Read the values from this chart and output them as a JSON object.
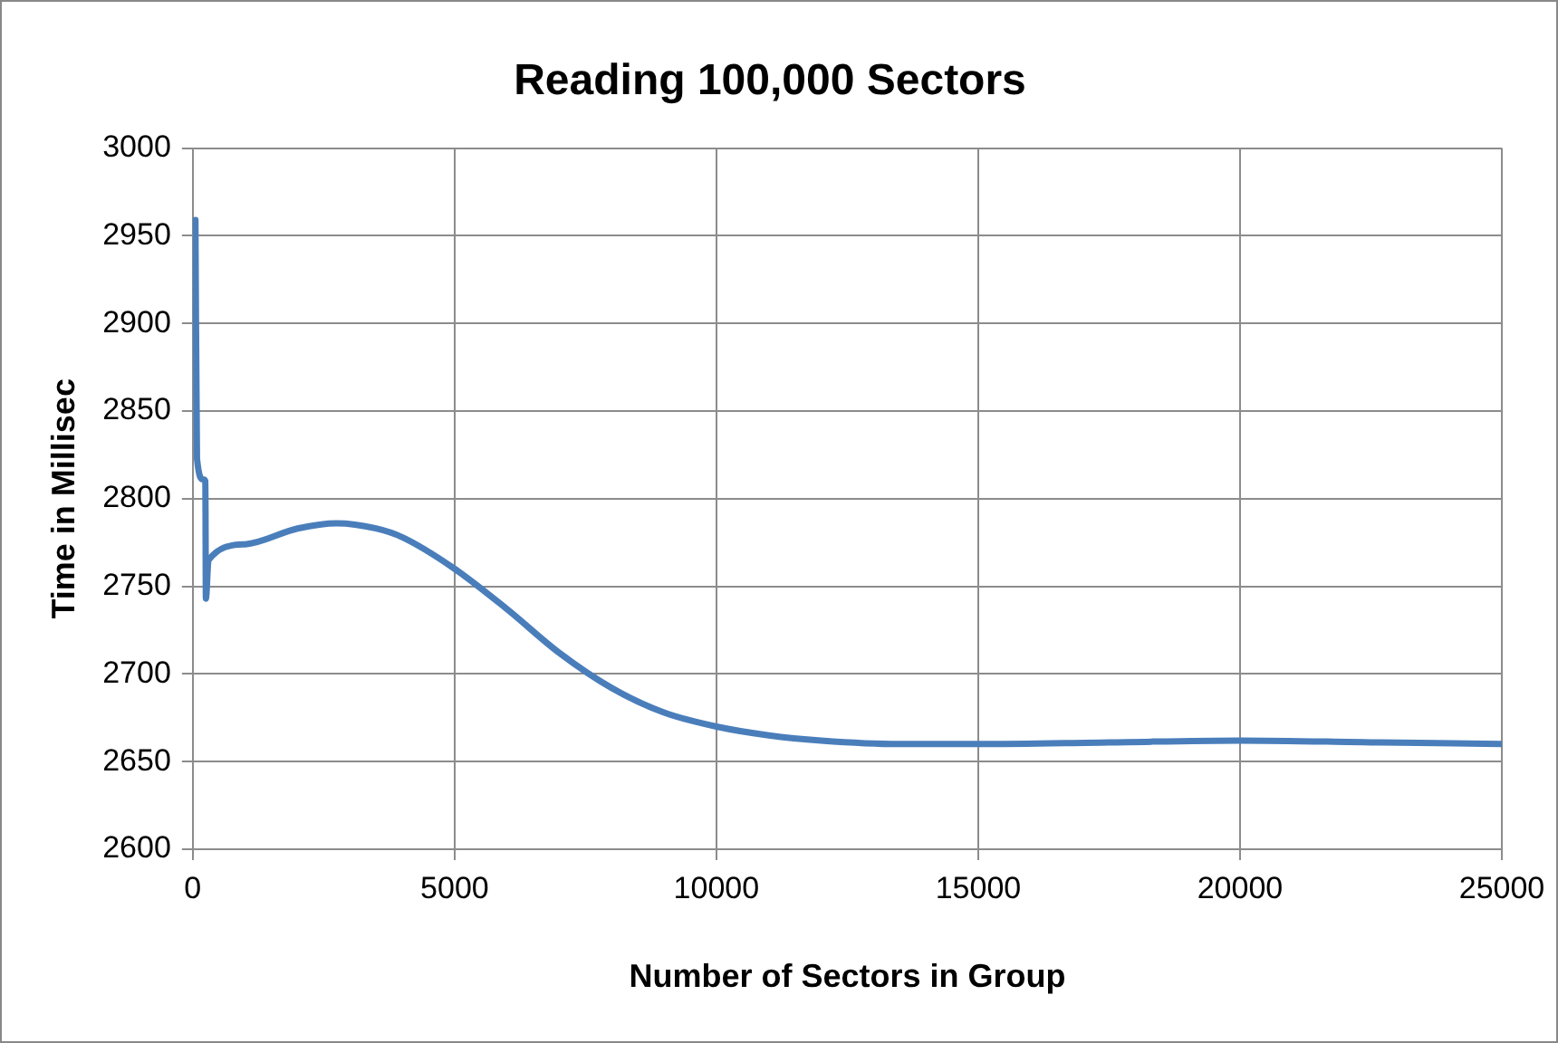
{
  "chart_data": {
    "type": "line",
    "title": "Reading 100,000 Sectors",
    "xlabel": "Number of Sectors in Group",
    "ylabel": "Time in Millisec",
    "x": [
      50,
      80,
      200,
      240,
      250,
      300,
      1000,
      2000,
      2750,
      3500,
      4000,
      5000,
      6000,
      7000,
      8000,
      9000,
      10000,
      11000,
      12000,
      13500,
      15000,
      17500,
      20000,
      22500,
      25000
    ],
    "series": [
      {
        "color": "#4a7ebb",
        "values": [
          2959,
          2823,
          2811,
          2810,
          2743,
          2765,
          2774,
          2783,
          2786,
          2783,
          2778,
          2760,
          2737,
          2712,
          2692,
          2678,
          2670,
          2665,
          2662,
          2660,
          2660,
          2661,
          2662,
          2661,
          2660
        ]
      }
    ],
    "xlim": [
      0,
      25000
    ],
    "xticks": [
      0,
      5000,
      10000,
      15000,
      20000,
      25000
    ],
    "ylim": [
      2600,
      3000
    ],
    "yticks": [
      2600,
      2650,
      2700,
      2750,
      2800,
      2850,
      2900,
      2950,
      3000
    ],
    "grid": true,
    "legend": false,
    "marker": "none",
    "line_style": "solid"
  }
}
